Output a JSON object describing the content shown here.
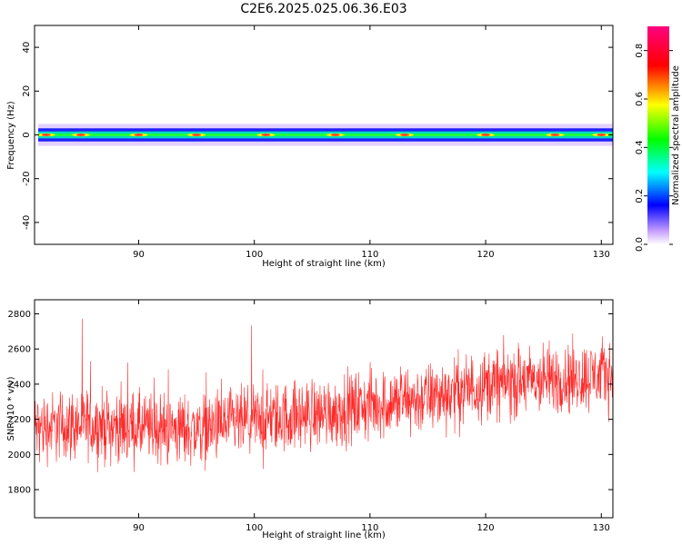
{
  "title": "C2E6.2025.025.06.36.E03",
  "chart_data": [
    {
      "type": "heatmap",
      "xlabel": "Height of straight line (km)",
      "ylabel": "Frequency (Hz)",
      "xlim": [
        81,
        131
      ],
      "ylim": [
        -50,
        50
      ],
      "xticks": [
        90,
        100,
        110,
        120,
        130
      ],
      "yticks": [
        -40,
        -20,
        0,
        20,
        40
      ],
      "band": {
        "center_hz": 0,
        "core_halfwidth_hz": 1,
        "mid_halfwidth_hz": 3,
        "outer_halfwidth_hz": 5
      },
      "colorbar": {
        "label": "Normalized spectral amplitude",
        "range": [
          0.0,
          0.9
        ],
        "ticks": [
          0.0,
          0.2,
          0.4,
          0.6,
          0.8
        ],
        "colors": [
          "#ffffff",
          "#c8a0ff",
          "#0000ff",
          "#00ffff",
          "#00ff00",
          "#ffff00",
          "#ff0000",
          "#ff0080"
        ]
      },
      "peaks_km": [
        82,
        85,
        90,
        95,
        101,
        107,
        113,
        120,
        126,
        130
      ]
    },
    {
      "type": "line",
      "xlabel": "Height of straight line (km)",
      "ylabel": "SNR (10 * v/v)",
      "xlim": [
        81,
        131
      ],
      "ylim": [
        1640,
        2880
      ],
      "xticks": [
        90,
        100,
        110,
        120,
        130
      ],
      "yticks": [
        1800,
        2000,
        2200,
        2400,
        2600,
        2800
      ],
      "color": "#ff2a2a",
      "trend": {
        "x": [
          81,
          85,
          90,
          95,
          100,
          105,
          110,
          115,
          120,
          125,
          131
        ],
        "y": [
          2150,
          2170,
          2150,
          2140,
          2190,
          2230,
          2280,
          2320,
          2400,
          2420,
          2460
        ]
      },
      "noise_amplitude": 180
    }
  ]
}
